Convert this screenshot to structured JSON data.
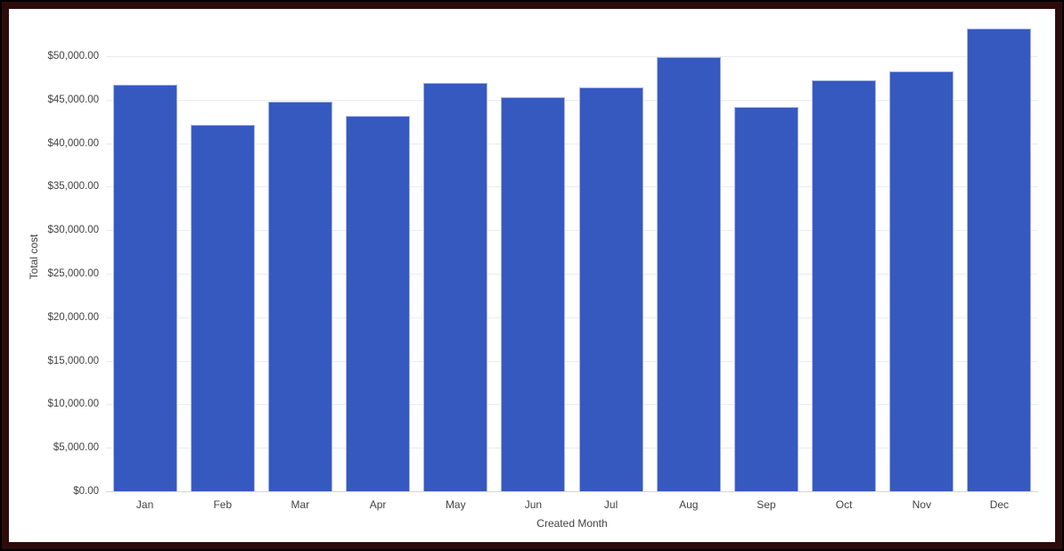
{
  "frame": {
    "outer_color": "#000000",
    "inner_color": "#2E0B0B",
    "background": "#FFFFFF"
  },
  "chart_data": {
    "type": "bar",
    "title": "",
    "xlabel": "Created Month",
    "ylabel": "Total cost",
    "categories": [
      "Jan",
      "Feb",
      "Mar",
      "Apr",
      "May",
      "Jun",
      "Jul",
      "Aug",
      "Sep",
      "Oct",
      "Nov",
      "Dec"
    ],
    "values": [
      46700,
      42100,
      44800,
      43100,
      46900,
      45300,
      46400,
      49900,
      44200,
      47200,
      48300,
      53200
    ],
    "yticks": [
      0,
      5000,
      10000,
      15000,
      20000,
      25000,
      30000,
      35000,
      40000,
      45000,
      50000
    ],
    "ytick_labels": [
      "$0.00",
      "$5,000.00",
      "$10,000.00",
      "$15,000.00",
      "$20,000.00",
      "$25,000.00",
      "$30,000.00",
      "$35,000.00",
      "$40,000.00",
      "$45,000.00",
      "$50,000.00"
    ],
    "ylim": [
      0,
      54000
    ],
    "grid": true,
    "legend": "none",
    "colors": {
      "bar_fill": "#3659C0",
      "bar_stroke": "#A8B6E8",
      "gridline": "#ECECEC",
      "baseline": "#D6D6D6",
      "text": "#424242"
    }
  }
}
